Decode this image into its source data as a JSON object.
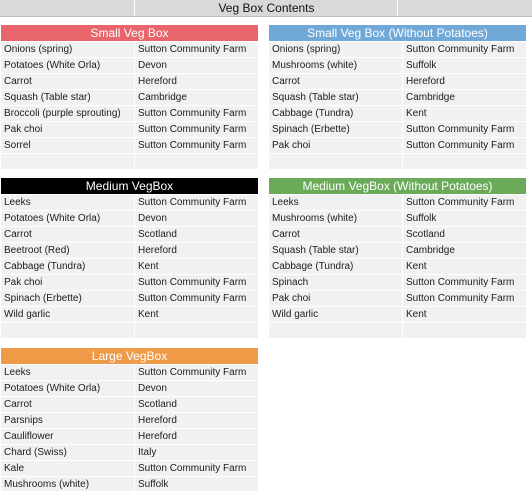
{
  "sheet_title": "Veg Box Contents",
  "boxes": [
    {
      "title": "Small Veg Box",
      "color": "#e8666b",
      "rows": [
        {
          "veg": "Onions (spring)",
          "farm": "Sutton Community Farm"
        },
        {
          "veg": "Potatoes (White Orla)",
          "farm": "Devon"
        },
        {
          "veg": "Carrot",
          "farm": "Hereford"
        },
        {
          "veg": "Squash (Table star)",
          "farm": "Cambridge"
        },
        {
          "veg": "Broccoli (purple sprouting)",
          "farm": "Sutton Community Farm"
        },
        {
          "veg": "Pak choi",
          "farm": "Sutton Community Farm"
        },
        {
          "veg": "Sorrel",
          "farm": "Sutton Community Farm"
        },
        {
          "veg": "",
          "farm": ""
        }
      ]
    },
    {
      "title": "Small Veg Box (Without Potatoes)",
      "color": "#70a8d8",
      "rows": [
        {
          "veg": "Onions (spring)",
          "farm": "Sutton Community Farm"
        },
        {
          "veg": "Mushrooms (white)",
          "farm": "Suffolk"
        },
        {
          "veg": "Carrot",
          "farm": "Hereford"
        },
        {
          "veg": "Squash (Table star)",
          "farm": "Cambridge"
        },
        {
          "veg": "Cabbage (Tundra)",
          "farm": "Kent"
        },
        {
          "veg": "Spinach (Erbette)",
          "farm": "Sutton Community Farm"
        },
        {
          "veg": "Pak choi",
          "farm": "Sutton Community Farm"
        },
        {
          "veg": "",
          "farm": ""
        }
      ]
    },
    {
      "title": "Medium VegBox",
      "color": "#000000",
      "rows": [
        {
          "veg": "Leeks",
          "farm": "Sutton Community Farm"
        },
        {
          "veg": "Potatoes (White Orla)",
          "farm": "Devon"
        },
        {
          "veg": "Carrot",
          "farm": "Scotland"
        },
        {
          "veg": "Beetroot (Red)",
          "farm": "Hereford"
        },
        {
          "veg": "Cabbage (Tundra)",
          "farm": "Kent"
        },
        {
          "veg": "Pak choi",
          "farm": "Sutton Community Farm"
        },
        {
          "veg": "Spinach (Erbette)",
          "farm": "Sutton Community Farm"
        },
        {
          "veg": "Wild garlic",
          "farm": "Kent"
        },
        {
          "veg": "",
          "farm": ""
        }
      ]
    },
    {
      "title": "Medium VegBox (Without Potatoes)",
      "color": "#6aaa58",
      "rows": [
        {
          "veg": "Leeks",
          "farm": "Sutton Community Farm"
        },
        {
          "veg": "Mushrooms (white)",
          "farm": "Suffolk"
        },
        {
          "veg": "Carrot",
          "farm": "Scotland"
        },
        {
          "veg": "Squash (Table star)",
          "farm": "Cambridge"
        },
        {
          "veg": "Cabbage (Tundra)",
          "farm": "Kent"
        },
        {
          "veg": "Spinach",
          "farm": "Sutton Community Farm"
        },
        {
          "veg": "Pak choi",
          "farm": "Sutton Community Farm"
        },
        {
          "veg": "Wild garlic",
          "farm": "Kent"
        },
        {
          "veg": "",
          "farm": ""
        }
      ]
    },
    {
      "title": "Large VegBox",
      "color": "#ee9a47",
      "rows": [
        {
          "veg": "Leeks",
          "farm": "Sutton Community Farm"
        },
        {
          "veg": "Potatoes (White Orla)",
          "farm": "Devon"
        },
        {
          "veg": "Carrot",
          "farm": "Scotland"
        },
        {
          "veg": "Parsnips",
          "farm": "Hereford"
        },
        {
          "veg": "Cauliflower",
          "farm": "Hereford"
        },
        {
          "veg": "Chard (Swiss)",
          "farm": "Italy"
        },
        {
          "veg": "Kale",
          "farm": "Sutton Community Farm"
        },
        {
          "veg": "Mushrooms (white)",
          "farm": "Suffolk"
        }
      ]
    }
  ]
}
